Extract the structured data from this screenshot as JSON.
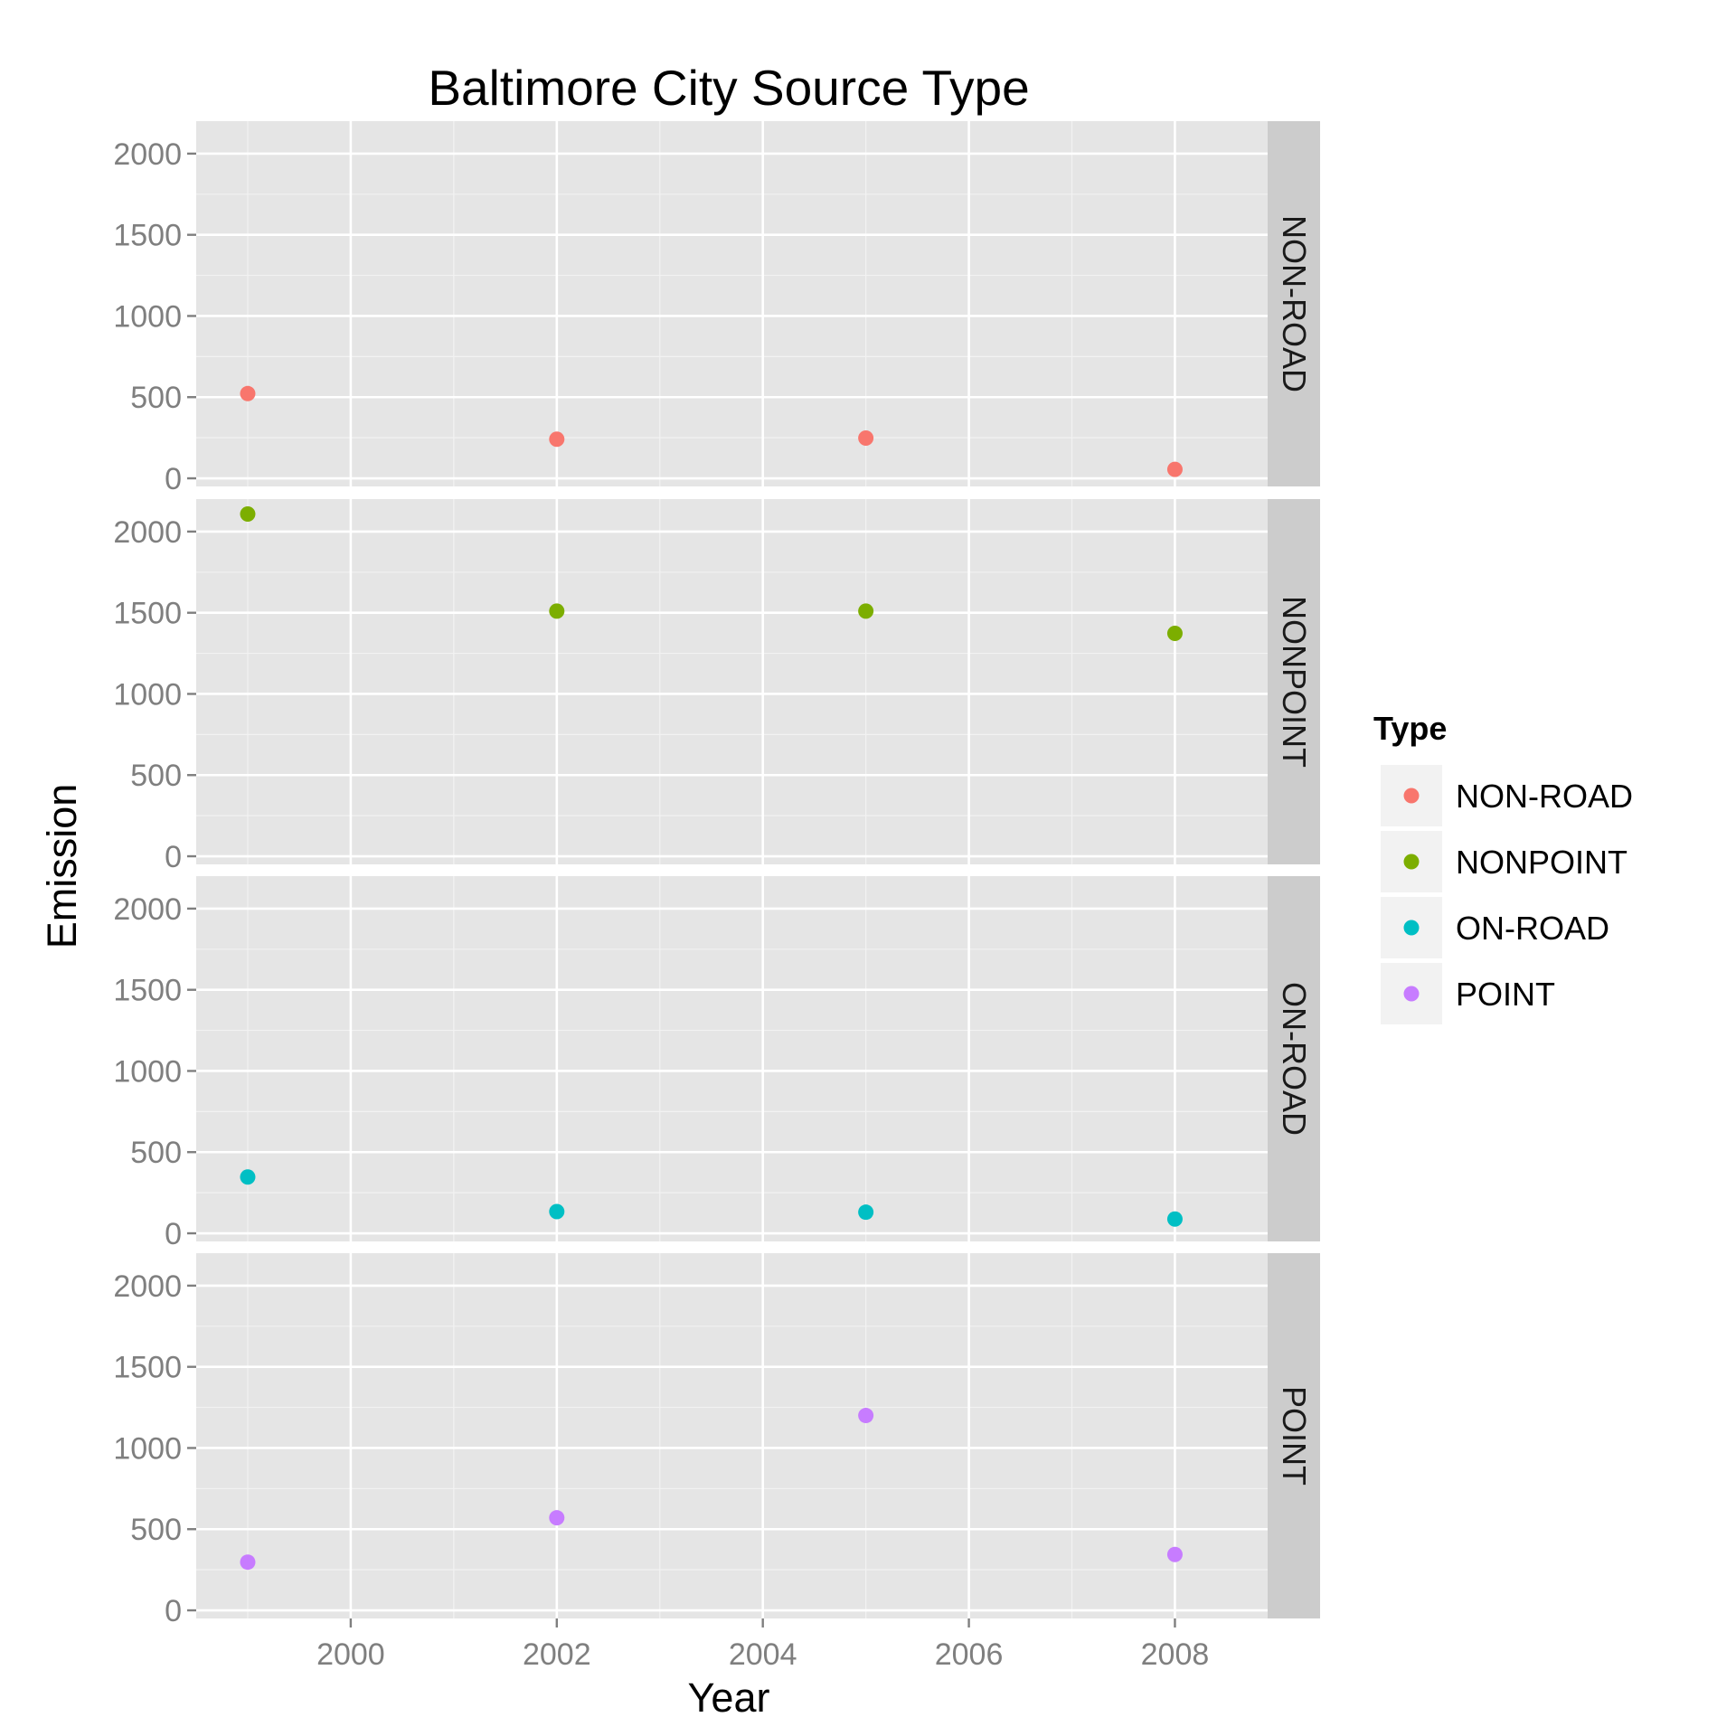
{
  "chart_data": {
    "type": "scatter",
    "title": "Baltimore City Source Type",
    "xlabel": "Year",
    "ylabel": "Emission",
    "xlim": [
      1998.5,
      2008.9
    ],
    "ylim": [
      -50,
      2200
    ],
    "x_ticks": [
      "2000",
      "2002",
      "2004",
      "2006",
      "2008"
    ],
    "y_ticks": [
      "0",
      "500",
      "1000",
      "1500",
      "2000"
    ],
    "grid": true,
    "facets": "rows",
    "legend": {
      "title": "Type",
      "position": "right",
      "entries": [
        "NON-ROAD",
        "NONPOINT",
        "ON-ROAD",
        "POINT"
      ]
    },
    "colors": {
      "NON-ROAD": "#f8766d",
      "NONPOINT": "#7cae00",
      "ON-ROAD": "#00bfc4",
      "POINT": "#c77cff"
    },
    "series": [
      {
        "name": "NON-ROAD",
        "x": [
          1999,
          2002,
          2005,
          2008
        ],
        "values": [
          522,
          241,
          248,
          55
        ]
      },
      {
        "name": "NONPOINT",
        "x": [
          1999,
          2002,
          2005,
          2008
        ],
        "values": [
          2108,
          1510,
          1510,
          1373
        ]
      },
      {
        "name": "ON-ROAD",
        "x": [
          1999,
          2002,
          2005,
          2008
        ],
        "values": [
          347,
          134,
          130,
          88
        ]
      },
      {
        "name": "POINT",
        "x": [
          1999,
          2002,
          2005,
          2008
        ],
        "values": [
          297,
          570,
          1200,
          344
        ]
      }
    ]
  }
}
